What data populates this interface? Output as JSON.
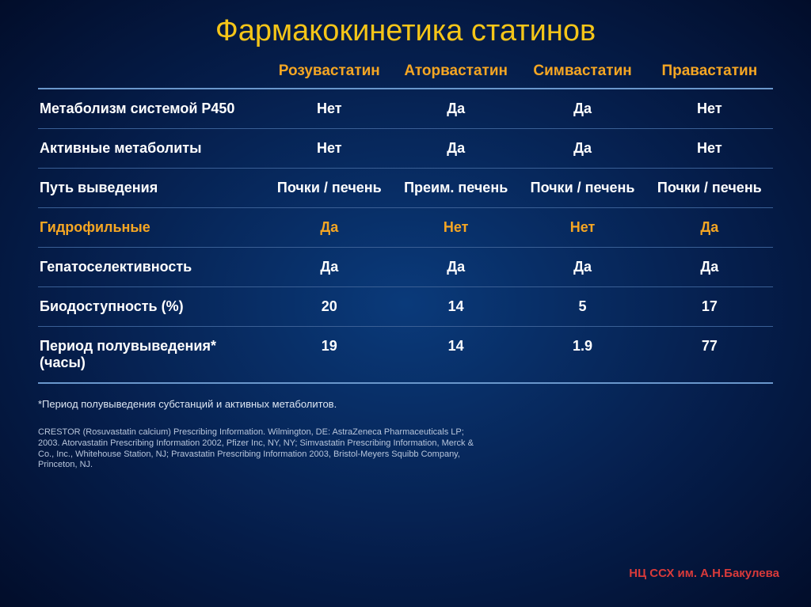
{
  "title": "Фармакокинетика статинов",
  "columns": [
    "Розувастатин",
    "Аторвастатин",
    "Симвастатин",
    "Правастатин"
  ],
  "rows": [
    {
      "label": "Метаболизм системой P450",
      "cells": [
        "Нет",
        "Да",
        "Да",
        "Нет"
      ],
      "highlight": false
    },
    {
      "label": "Активные метаболиты",
      "cells": [
        "Нет",
        "Да",
        "Да",
        "Нет"
      ],
      "highlight": false
    },
    {
      "label": "Путь выведения",
      "cells": [
        "Почки / печень",
        "Преим. печень",
        "Почки / печень",
        "Почки / печень"
      ],
      "highlight": false
    },
    {
      "label": "Гидрофильные",
      "cells": [
        "Да",
        "Нет",
        "Нет",
        "Да"
      ],
      "highlight": true
    },
    {
      "label": "Гепатоселективность",
      "cells": [
        "Да",
        "Да",
        "Да",
        "Да"
      ],
      "highlight": false
    },
    {
      "label": "Биодоступность (%)",
      "cells": [
        "20",
        "14",
        "5",
        "17"
      ],
      "highlight": false
    },
    {
      "label": "Период полувыведения* (часы)",
      "cells": [
        "19",
        "14",
        "1.9",
        "77"
      ],
      "highlight": false
    }
  ],
  "footnote": "*Период полувыведения субстанций и активных метаболитов.",
  "references": "CRESTOR (Rosuvastatin calcium) Prescribing Information. Wilmington, DE: AstraZeneca Pharmaceuticals LP; 2003. Atorvastatin Prescribing Information 2002, Pfizer Inc, NY, NY; Simvastatin Prescribing Information, Merck & Co., Inc., Whitehouse Station, NJ; Pravastatin Prescribing Information 2003, Bristol-Meyers Squibb Company, Princeton, NJ.",
  "credit": "НЦ ССХ им. А.Н.Бакулева",
  "styling": {
    "title_color": "#f5c518",
    "header_color": "#f5a623",
    "highlight_color": "#f5a623",
    "text_color": "#ffffff",
    "divider_color": "#6a97cc",
    "row_divider_color": "#3a5f95",
    "credit_color": "#d93a3a",
    "bg_gradient": [
      "#0a3a7a",
      "#051d4a",
      "#020d2a"
    ],
    "title_fontsize": 38,
    "header_fontsize": 19,
    "cell_fontsize": 18,
    "footnote_fontsize": 13,
    "refs_fontsize": 11,
    "credit_fontsize": 15
  }
}
